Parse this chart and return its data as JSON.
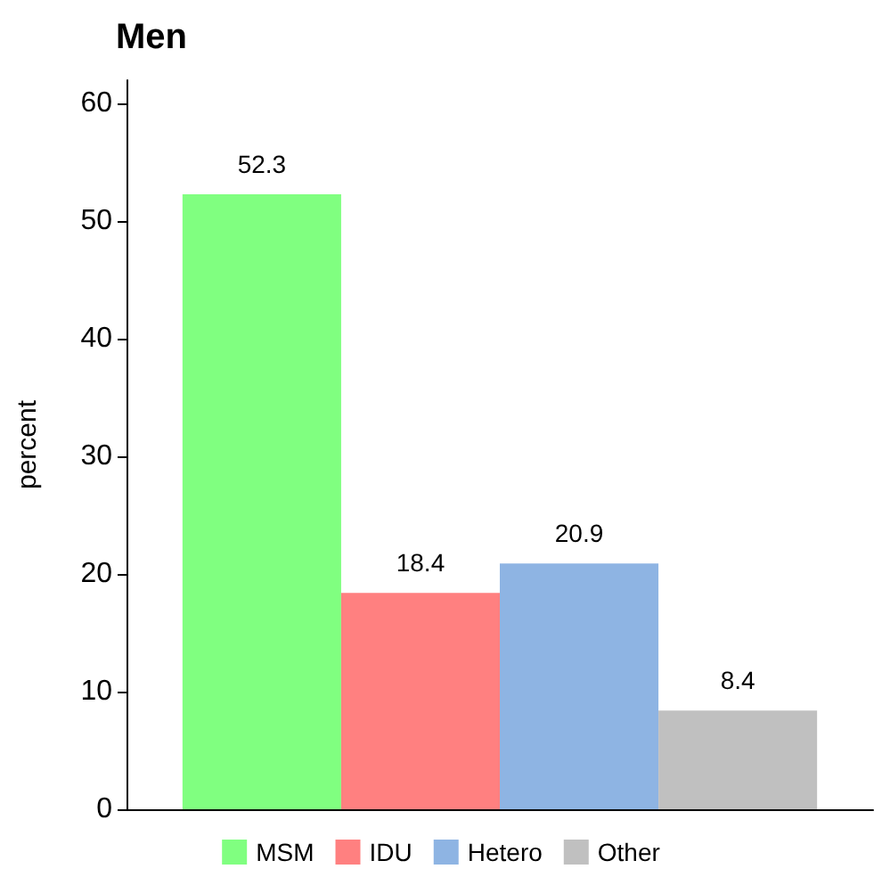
{
  "chart_data": {
    "type": "bar",
    "title": "Men",
    "ylabel": "percent",
    "categories": [
      null
    ],
    "series": [
      {
        "name": "MSM",
        "color": "#80ff80",
        "values": [
          52.3
        ]
      },
      {
        "name": "IDU",
        "color": "#ff8080",
        "values": [
          18.4
        ]
      },
      {
        "name": "Hetero",
        "color": "#8eb4e3",
        "values": [
          20.9
        ]
      },
      {
        "name": "Other",
        "color": "#c0c0c0",
        "values": [
          8.4
        ]
      }
    ],
    "ylim": [
      0,
      62
    ],
    "yticks": [
      0,
      10,
      20,
      30,
      40,
      50,
      60
    ],
    "grid": false,
    "legend": "bottom",
    "data_labels": true,
    "tick_labels": "y"
  }
}
